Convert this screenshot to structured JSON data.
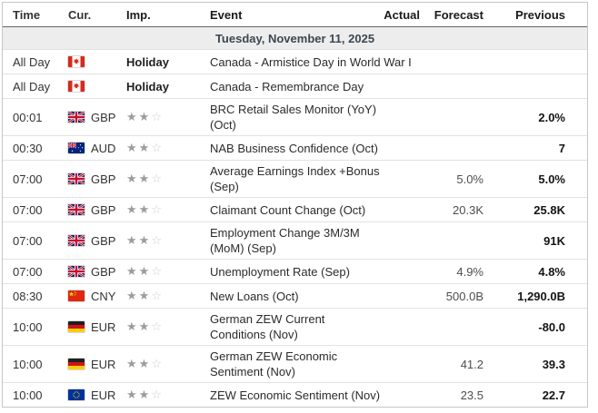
{
  "header": {
    "columns": [
      "Time",
      "Cur.",
      "Imp.",
      "Event",
      "Actual",
      "Forecast",
      "Previous"
    ]
  },
  "date_row": {
    "label": "Tuesday, November 11, 2025"
  },
  "importance_total_stars": 3,
  "colors": {
    "date_row_bg": "#ededed",
    "date_row_text": "#3b4752",
    "header_underline": "#666666",
    "star_filled": "#9c9c9c",
    "star_empty": "#cfcfcf"
  },
  "rows": [
    {
      "type": "holiday",
      "time": "All Day",
      "flag": "canada",
      "currency": "",
      "importance_label": "Holiday",
      "event_lines": [
        "Canada - Armistice Day in World War I"
      ],
      "actual": "",
      "forecast": "",
      "previous": ""
    },
    {
      "type": "holiday",
      "time": "All Day",
      "flag": "canada",
      "currency": "",
      "importance_label": "Holiday",
      "event_lines": [
        "Canada - Remembrance Day"
      ],
      "actual": "",
      "forecast": "",
      "previous": ""
    },
    {
      "type": "event",
      "time": "00:01",
      "flag": "uk",
      "currency": "GBP",
      "importance": 2,
      "event_lines": [
        "BRC Retail Sales Monitor (YoY)",
        "(Oct)"
      ],
      "actual": "",
      "forecast": "",
      "previous": "2.0%"
    },
    {
      "type": "event",
      "time": "00:30",
      "flag": "australia",
      "currency": "AUD",
      "importance": 2,
      "event_lines": [
        "NAB Business Confidence (Oct)"
      ],
      "actual": "",
      "forecast": "",
      "previous": "7"
    },
    {
      "type": "event",
      "time": "07:00",
      "flag": "uk",
      "currency": "GBP",
      "importance": 2,
      "event_lines": [
        "Average Earnings Index +Bonus",
        "(Sep)"
      ],
      "actual": "",
      "forecast": "5.0%",
      "previous": "5.0%"
    },
    {
      "type": "event",
      "time": "07:00",
      "flag": "uk",
      "currency": "GBP",
      "importance": 2,
      "event_lines": [
        "Claimant Count Change (Oct)"
      ],
      "actual": "",
      "forecast": "20.3K",
      "previous": "25.8K"
    },
    {
      "type": "event",
      "time": "07:00",
      "flag": "uk",
      "currency": "GBP",
      "importance": 2,
      "event_lines": [
        "Employment Change 3M/3M",
        "(MoM) (Sep)"
      ],
      "actual": "",
      "forecast": "",
      "previous": "91K"
    },
    {
      "type": "event",
      "time": "07:00",
      "flag": "uk",
      "currency": "GBP",
      "importance": 2,
      "event_lines": [
        "Unemployment Rate (Sep)"
      ],
      "actual": "",
      "forecast": "4.9%",
      "previous": "4.8%"
    },
    {
      "type": "event",
      "time": "08:30",
      "flag": "china",
      "currency": "CNY",
      "importance": 2,
      "event_lines": [
        "New Loans (Oct)"
      ],
      "actual": "",
      "forecast": "500.0B",
      "previous": "1,290.0B"
    },
    {
      "type": "event",
      "time": "10:00",
      "flag": "germany",
      "currency": "EUR",
      "importance": 2,
      "event_lines": [
        "German ZEW Current",
        "Conditions (Nov)"
      ],
      "actual": "",
      "forecast": "",
      "previous": "-80.0"
    },
    {
      "type": "event",
      "time": "10:00",
      "flag": "germany",
      "currency": "EUR",
      "importance": 2,
      "event_lines": [
        "German ZEW Economic",
        "Sentiment (Nov)"
      ],
      "actual": "",
      "forecast": "41.2",
      "previous": "39.3"
    },
    {
      "type": "event",
      "time": "10:00",
      "flag": "eu",
      "currency": "EUR",
      "importance": 2,
      "event_lines": [
        "ZEW Economic Sentiment (Nov)"
      ],
      "actual": "",
      "forecast": "23.5",
      "previous": "22.7"
    }
  ]
}
